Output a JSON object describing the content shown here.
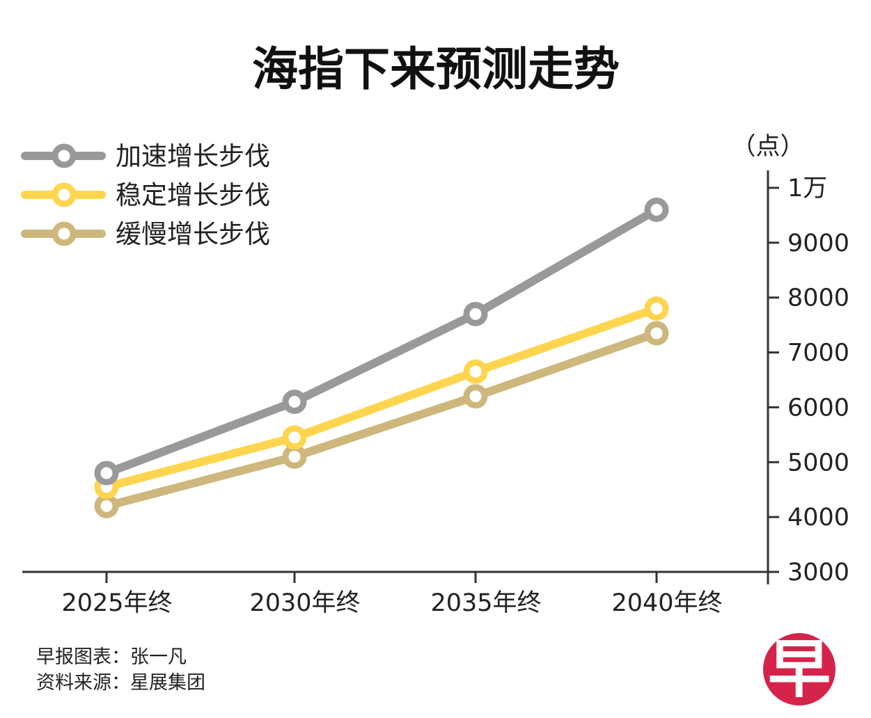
{
  "chart_data": {
    "type": "line",
    "title": "海指下来预测走势",
    "y_unit": "（点）",
    "categories": [
      "2025年终",
      "2030年终",
      "2035年终",
      "2040年终"
    ],
    "series": [
      {
        "name": "加速增长步伐",
        "color": "#999999",
        "values": [
          4800,
          6100,
          7700,
          9600
        ]
      },
      {
        "name": "稳定增长步伐",
        "color": "#FFD54F",
        "values": [
          4550,
          5450,
          6650,
          7800
        ]
      },
      {
        "name": "缓慢增长步伐",
        "color": "#CDB77C",
        "values": [
          4200,
          5100,
          6200,
          7350
        ]
      }
    ],
    "ylim": [
      3000,
      10000
    ],
    "y_ticks": [
      {
        "value": 10000,
        "label": "1万"
      },
      {
        "value": 9000,
        "label": "9000"
      },
      {
        "value": 8000,
        "label": "8000"
      },
      {
        "value": 7000,
        "label": "7000"
      },
      {
        "value": 6000,
        "label": "6000"
      },
      {
        "value": 5000,
        "label": "5000"
      },
      {
        "value": 4000,
        "label": "4000"
      },
      {
        "value": 3000,
        "label": "3000"
      }
    ],
    "grid": false,
    "legend_position": "top-left"
  },
  "credits": {
    "graphic": "早报图表：张一凡",
    "source": "资料来源：星展集团"
  },
  "logo": {
    "char": "早",
    "color": "#D6234C"
  }
}
